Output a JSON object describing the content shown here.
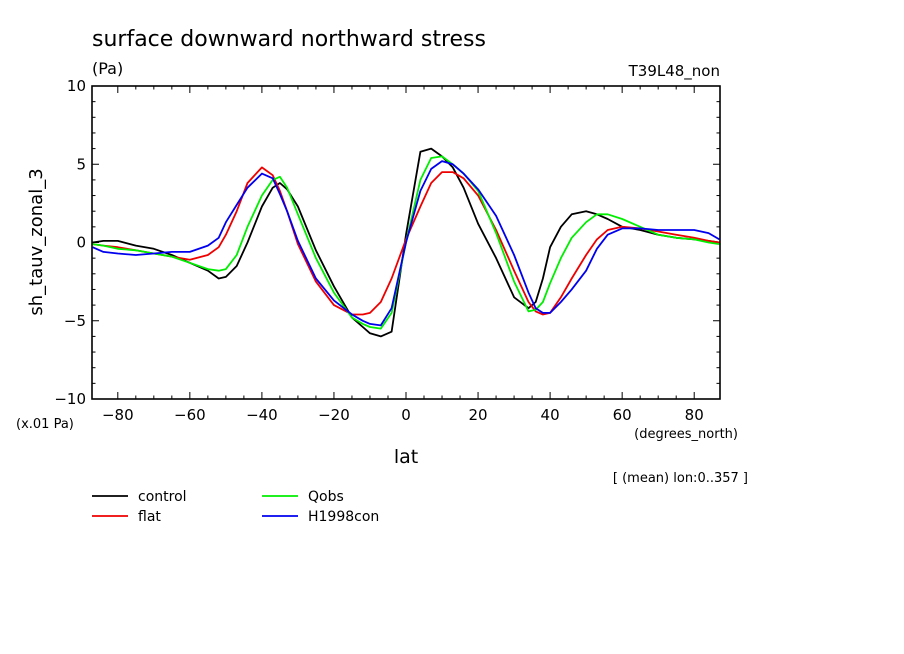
{
  "chart_data": {
    "type": "line",
    "title": "surface downward northward stress",
    "units_label": "(Pa)",
    "run_label": "T39L48_non",
    "ylabel": "sh_tauv_zonal_3",
    "xlabel": "lat",
    "y_scale_note": "(x.01 Pa)",
    "x_units": "(degrees_north)",
    "mean_note": "[ (mean) lon:0..357 ]",
    "xlim": [
      -87.16,
      87.16
    ],
    "ylim": [
      -10,
      10
    ],
    "xticks": [
      -80,
      -60,
      -40,
      -20,
      0,
      20,
      40,
      60,
      80
    ],
    "yticks": [
      -10,
      -5,
      0,
      5,
      10
    ],
    "xtick_labels": [
      "−80",
      "−60",
      "−40",
      "−20",
      "0",
      "20",
      "40",
      "60",
      "80"
    ],
    "ytick_labels": [
      "−10",
      "−5",
      "0",
      "5",
      "10"
    ],
    "x": [
      -87,
      -84,
      -80,
      -75,
      -70,
      -65,
      -60,
      -55,
      -52,
      -50,
      -47,
      -44,
      -40,
      -37,
      -35,
      -33,
      -30,
      -25,
      -20,
      -15,
      -12,
      -10,
      -7,
      -4,
      0,
      4,
      7,
      10,
      13,
      16,
      20,
      25,
      30,
      34,
      36,
      38,
      40,
      43,
      46,
      50,
      53,
      56,
      60,
      65,
      70,
      75,
      80,
      84,
      87
    ],
    "series": [
      {
        "name": "control",
        "color": "#000000",
        "values": [
          0.0,
          0.1,
          0.1,
          -0.2,
          -0.4,
          -0.8,
          -1.3,
          -1.8,
          -2.3,
          -2.2,
          -1.5,
          0.0,
          2.3,
          3.5,
          3.8,
          3.4,
          2.3,
          -0.5,
          -2.8,
          -4.8,
          -5.4,
          -5.8,
          -6.0,
          -5.7,
          0.5,
          5.8,
          6.0,
          5.5,
          4.8,
          3.5,
          1.2,
          -1.0,
          -3.5,
          -4.2,
          -3.8,
          -2.3,
          -0.3,
          1.0,
          1.8,
          2.0,
          1.8,
          1.5,
          1.0,
          0.8,
          0.5,
          0.3,
          0.2,
          0.1,
          0.0
        ]
      },
      {
        "name": "flat",
        "color": "#ee0000",
        "values": [
          -0.1,
          -0.2,
          -0.3,
          -0.5,
          -0.7,
          -0.9,
          -1.1,
          -0.8,
          -0.3,
          0.5,
          2.0,
          3.8,
          4.8,
          4.3,
          3.3,
          2.0,
          -0.1,
          -2.5,
          -4.0,
          -4.6,
          -4.6,
          -4.5,
          -3.8,
          -2.3,
          0.2,
          2.3,
          3.8,
          4.5,
          4.5,
          4.1,
          3.0,
          0.8,
          -1.8,
          -3.8,
          -4.4,
          -4.6,
          -4.5,
          -3.5,
          -2.3,
          -0.8,
          0.2,
          0.8,
          1.0,
          0.9,
          0.7,
          0.5,
          0.3,
          0.1,
          0.0
        ]
      },
      {
        "name": "Qobs",
        "color": "#00ee00",
        "values": [
          -0.1,
          -0.2,
          -0.4,
          -0.5,
          -0.7,
          -0.9,
          -1.3,
          -1.7,
          -1.8,
          -1.7,
          -0.8,
          1.0,
          3.0,
          4.0,
          4.2,
          3.5,
          1.8,
          -1.0,
          -3.2,
          -4.8,
          -5.2,
          -5.4,
          -5.5,
          -4.5,
          0.0,
          4.0,
          5.4,
          5.5,
          5.0,
          4.4,
          3.3,
          0.6,
          -2.5,
          -4.4,
          -4.3,
          -3.8,
          -2.6,
          -1.0,
          0.3,
          1.3,
          1.8,
          1.8,
          1.5,
          1.0,
          0.5,
          0.3,
          0.2,
          0.0,
          -0.1
        ]
      },
      {
        "name": "H1998con",
        "color": "#0000ee",
        "values": [
          -0.3,
          -0.6,
          -0.7,
          -0.8,
          -0.7,
          -0.6,
          -0.6,
          -0.2,
          0.3,
          1.3,
          2.4,
          3.5,
          4.4,
          4.1,
          3.1,
          2.0,
          0.1,
          -2.3,
          -3.7,
          -4.6,
          -5.0,
          -5.2,
          -5.3,
          -4.2,
          0.0,
          3.3,
          4.7,
          5.2,
          5.0,
          4.4,
          3.4,
          1.7,
          -0.8,
          -3.2,
          -4.2,
          -4.5,
          -4.5,
          -3.8,
          -3.0,
          -1.8,
          -0.4,
          0.5,
          0.9,
          0.9,
          0.8,
          0.8,
          0.8,
          0.6,
          0.2
        ]
      }
    ]
  }
}
